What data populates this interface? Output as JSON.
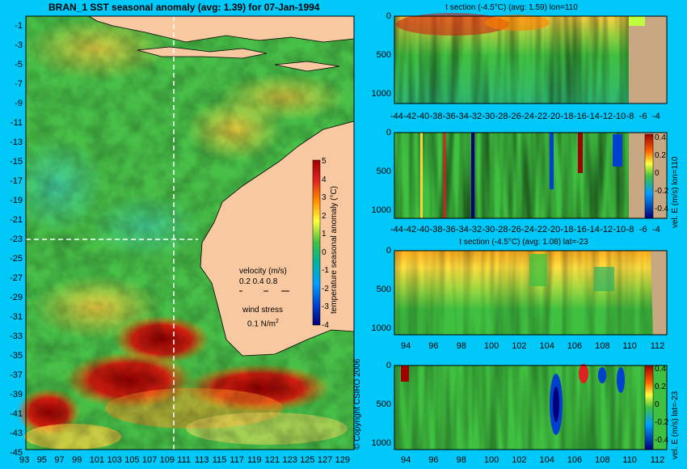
{
  "main_title": "BRAN_1 SST seasonal anomaly (avg: 1.39) for 07-Jan-1994",
  "copyright": "© Copyright CSIRO 2006",
  "map": {
    "lat_ticks": [
      "-1",
      "-3",
      "-5",
      "-7",
      "-9",
      "-11",
      "-13",
      "-15",
      "-17",
      "-19",
      "-21",
      "-23",
      "-25",
      "-27",
      "-29",
      "-31",
      "-33",
      "-35",
      "-37",
      "-39",
      "-41",
      "-43",
      "-45"
    ],
    "lon_ticks": [
      "93",
      "95",
      "97",
      "99",
      "101",
      "103",
      "105",
      "107",
      "109",
      "111",
      "113",
      "115",
      "117",
      "119",
      "121",
      "123",
      "125",
      "127",
      "129"
    ],
    "velocity_label": "velocity (m/s)",
    "velocity_scale": "0.2 0.4 0.8",
    "wind_label": "wind stress",
    "wind_value": "0.1 N/m",
    "wind_exp": "2",
    "colorbar_label": "temperature seasonal anomaly (°C)",
    "colorbar_ticks": [
      "5",
      "4",
      "3",
      "2",
      "1",
      "0",
      "-1",
      "-2",
      "-3",
      "-4"
    ]
  },
  "panels": {
    "p1_title": "t section (-4.5°C) (avg: 1.59) lon=110",
    "p1_xticks": [
      "-44",
      "-42",
      "-40",
      "-38",
      "-36",
      "-34",
      "-32",
      "-30",
      "-28",
      "-26",
      "-24",
      "-22",
      "-20",
      "-18",
      "-16",
      "-14",
      "-12",
      "-10",
      "-8",
      "-6",
      "-4"
    ],
    "p2_xticks": [
      "-44",
      "-42",
      "-40",
      "-38",
      "-36",
      "-34",
      "-32",
      "-30",
      "-28",
      "-26",
      "-24",
      "-22",
      "-20",
      "-18",
      "-16",
      "-14",
      "-12",
      "-10",
      "-8",
      "-6",
      "-4"
    ],
    "p2_cbar_label": "vel. E (m/s) lon=110",
    "p3_title": "t section (-4.5°C) (avg: 1.08) lat=-23",
    "p3_xticks": [
      "94",
      "96",
      "98",
      "100",
      "102",
      "104",
      "106",
      "108",
      "110",
      "112"
    ],
    "p4_xticks": [
      "94",
      "96",
      "98",
      "100",
      "102",
      "104",
      "106",
      "108",
      "110",
      "112"
    ],
    "p4_cbar_label": "vel. E (m/s) lat=-23",
    "yticks": [
      "0",
      "500",
      "1000"
    ],
    "vel_cbar_ticks": [
      "0.4",
      "0.2",
      "0",
      "-0.2",
      "-0.4"
    ]
  },
  "colors": {
    "background": "#00c8f8",
    "land": "#f8c8a0",
    "seafloor": "#c8a882",
    "anomaly_high": "#a00000",
    "anomaly_low": "#00007a",
    "neutral": "#40c040"
  },
  "chart_data": [
    {
      "type": "heatmap",
      "title": "BRAN_1 SST seasonal anomaly (avg: 1.39) for 07-Jan-1994",
      "xlim": [
        93,
        130
      ],
      "ylim": [
        -45,
        0
      ],
      "colorbar": {
        "label": "temperature seasonal anomaly (°C)",
        "range": [
          -4,
          5
        ]
      },
      "average": 1.39,
      "date": "07-Jan-1994"
    },
    {
      "type": "heatmap",
      "title": "t section (-4.5°C) (avg: 1.59) lon=110",
      "xlim": [
        -45,
        -3
      ],
      "ylim": [
        1050,
        0
      ],
      "average": 1.59
    },
    {
      "type": "heatmap",
      "title": "",
      "xlim": [
        -45,
        -3
      ],
      "ylim": [
        1050,
        0
      ],
      "colorbar": {
        "label": "vel. E (m/s) lon=110",
        "range": [
          -0.4,
          0.4
        ]
      }
    },
    {
      "type": "heatmap",
      "title": "t section (-4.5°C) (avg: 1.08) lat=-23",
      "xlim": [
        93,
        113.5
      ],
      "ylim": [
        1050,
        0
      ],
      "average": 1.08
    },
    {
      "type": "heatmap",
      "title": "",
      "xlim": [
        93,
        113.5
      ],
      "ylim": [
        1050,
        0
      ],
      "colorbar": {
        "label": "vel. E (m/s) lat=-23",
        "range": [
          -0.4,
          0.4
        ]
      }
    }
  ]
}
